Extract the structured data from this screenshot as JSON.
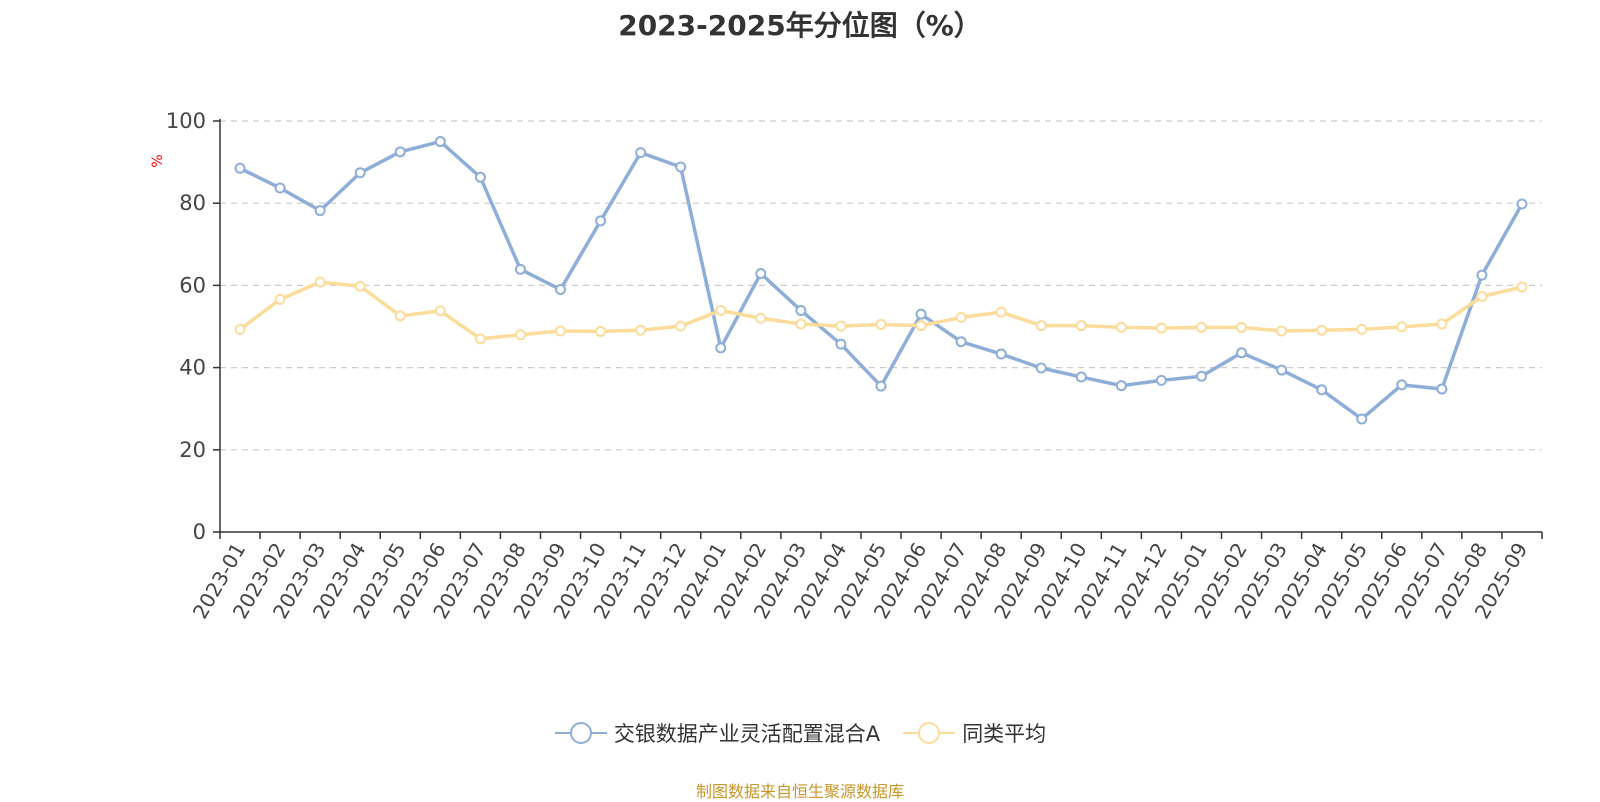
{
  "chart_data": {
    "type": "line",
    "title": "2023-2025年分位图（%）",
    "ylabel": "%",
    "xlabel": "",
    "ylim": [
      0,
      100
    ],
    "yticks": [
      0,
      20,
      40,
      60,
      80,
      100
    ],
    "grid": true,
    "legend_position": "bottom",
    "categories": [
      "2023-01",
      "2023-02",
      "2023-03",
      "2023-04",
      "2023-05",
      "2023-06",
      "2023-07",
      "2023-08",
      "2023-09",
      "2023-10",
      "2023-11",
      "2023-12",
      "2024-01",
      "2024-02",
      "2024-03",
      "2024-04",
      "2024-05",
      "2024-06",
      "2024-07",
      "2024-08",
      "2024-09",
      "2024-10",
      "2024-11",
      "2024-12",
      "2025-01",
      "2025-02",
      "2025-03",
      "2025-04",
      "2025-05",
      "2025-06",
      "2025-07",
      "2025-08",
      "2025-09"
    ],
    "series": [
      {
        "name": "交银数据产业灵活配置混合A",
        "color": "#8eaed8",
        "values": [
          88.5,
          83.7,
          78.2,
          87.4,
          92.5,
          95.0,
          86.3,
          63.9,
          59.0,
          75.7,
          92.3,
          88.8,
          44.8,
          62.9,
          53.9,
          45.7,
          35.5,
          53.0,
          46.3,
          43.3,
          39.9,
          37.7,
          35.6,
          36.9,
          37.9,
          43.6,
          39.4,
          34.6,
          27.5,
          35.8,
          34.8,
          62.5,
          79.8
        ]
      },
      {
        "name": "同类平均",
        "color": "#fbdc9a",
        "values": [
          49.3,
          56.6,
          60.8,
          59.8,
          52.6,
          53.8,
          47.0,
          48.0,
          48.9,
          48.8,
          49.1,
          50.1,
          53.9,
          52.0,
          50.6,
          50.1,
          50.5,
          50.2,
          52.2,
          53.5,
          50.2,
          50.2,
          49.8,
          49.6,
          49.8,
          49.8,
          48.9,
          49.1,
          49.3,
          49.9,
          50.6,
          57.3,
          59.6
        ]
      }
    ],
    "colors": {
      "axis": "#333333",
      "grid": "#cccccc",
      "tick_text": "#444444",
      "ylabel": "#ff0000"
    }
  },
  "source_note": {
    "text": "制图数据来自恒生聚源数据库",
    "color": "#c8962a"
  }
}
